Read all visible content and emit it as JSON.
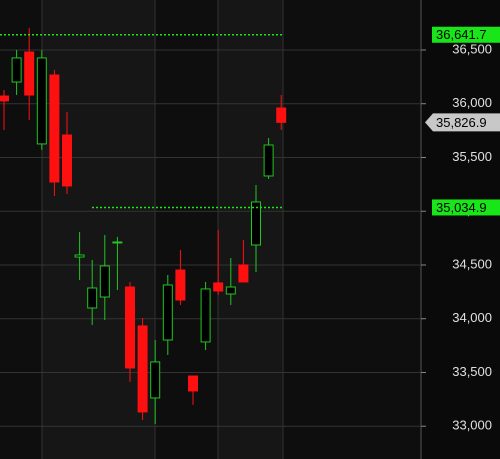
{
  "chart_data": {
    "type": "candlestick",
    "open": [
      36072,
      36202,
      36481,
      35626,
      36267,
      35709,
      34574,
      34100,
      34202,
      34705,
      34295,
      33933,
      33263,
      33802,
      34453,
      33467,
      33784,
      34333,
      34230,
      34500,
      34686,
      35328,
      35960
    ],
    "high": [
      36128,
      36500,
      36705,
      36500,
      36314,
      35923,
      34807,
      34547,
      34779,
      34761,
      34342,
      34007,
      33802,
      34407,
      34640,
      33467,
      34342,
      34826,
      34565,
      34733,
      35244,
      35681,
      36081
    ],
    "low": [
      35756,
      36081,
      35849,
      35570,
      35142,
      35160,
      34360,
      33942,
      33988,
      34267,
      33412,
      33058,
      33021,
      33663,
      34128,
      33198,
      33709,
      34221,
      34128,
      34342,
      34435,
      35300,
      35756
    ],
    "close": [
      36026,
      36426,
      36081,
      36426,
      35272,
      35235,
      34593,
      34286,
      34491,
      34714,
      33542,
      33133,
      33598,
      34314,
      34174,
      33328,
      34277,
      34258,
      34295,
      34342,
      35086,
      35616,
      35827
    ],
    "up_color": "#22c522",
    "down_color": "#ff1010",
    "ylim": [
      32695,
      36965
    ],
    "yticks": [
      {
        "value": 33000,
        "label": "33,000"
      },
      {
        "value": 33500,
        "label": "33,500"
      },
      {
        "value": 34000,
        "label": "34,000"
      },
      {
        "value": 34500,
        "label": "34,500"
      },
      {
        "value": 35000,
        "label": "35,000"
      },
      {
        "value": 35500,
        "label": "35,500"
      },
      {
        "value": 36000,
        "label": "36,000"
      },
      {
        "value": 36500,
        "label": "36,500"
      }
    ],
    "grid": true,
    "levels": [
      {
        "value": 36641.7,
        "label": "36,641.7",
        "color": "#19e619"
      },
      {
        "value": 35034.9,
        "label": "35,034.9",
        "color": "#19e619"
      }
    ],
    "price_marker": {
      "value": 35826.9,
      "label": "35,826.9",
      "color": "#c8c8c8"
    }
  }
}
